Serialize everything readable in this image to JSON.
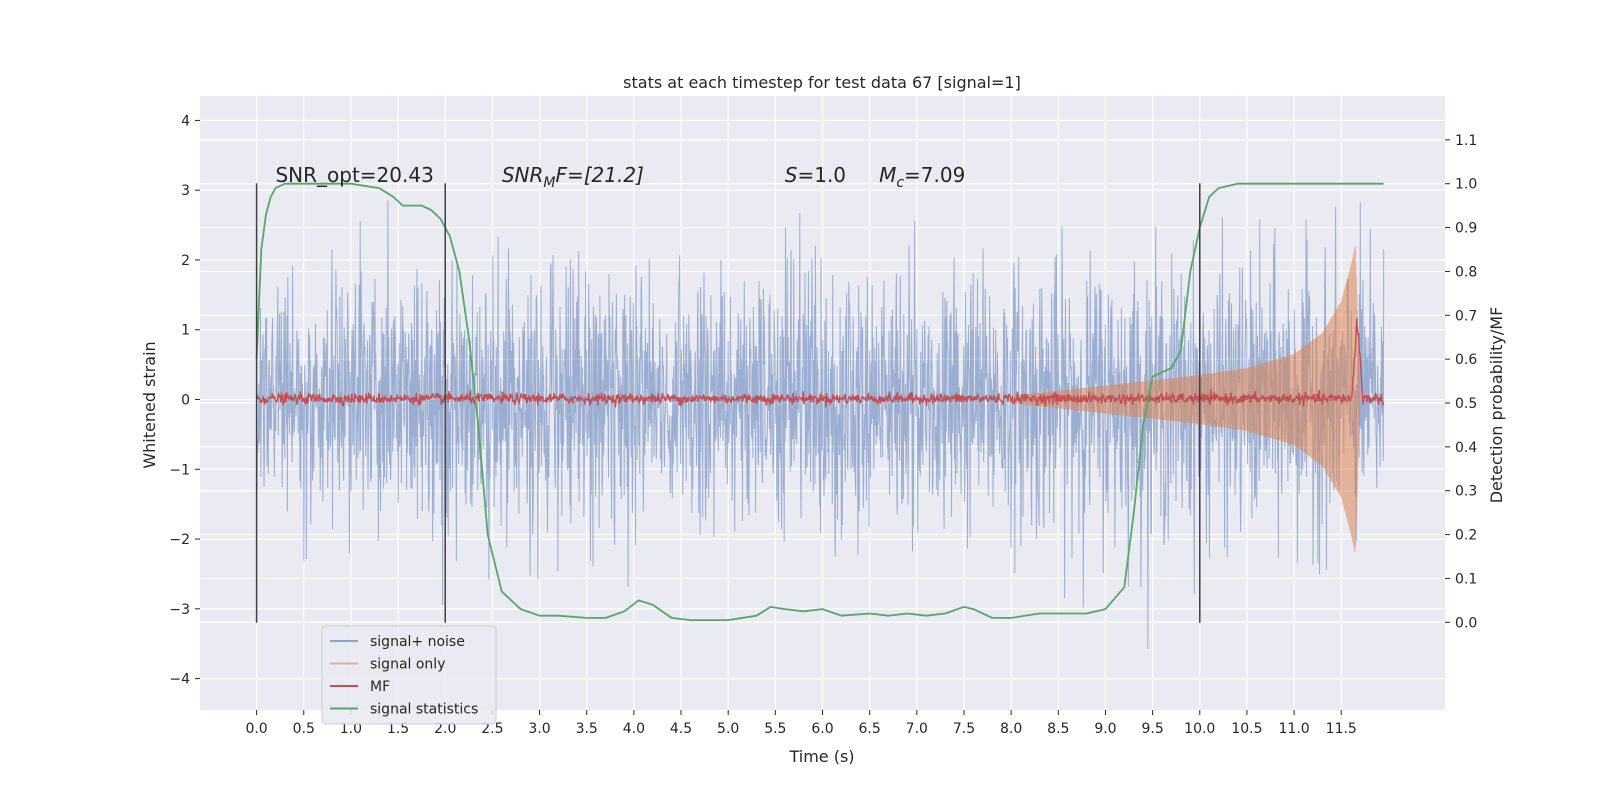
{
  "chart_data": {
    "type": "line",
    "title": "stats at each timestep for test data 67 [signal=1]",
    "xlabel": "Time (s)",
    "ylabel_left": "Whitened strain",
    "ylabel_right": "Detection probability/MF",
    "xlim": [
      -0.6,
      12.6
    ],
    "ylim_left": [
      -4.45,
      4.35
    ],
    "ylim_right": [
      -0.2,
      1.2
    ],
    "x_ticks": [
      "0.0",
      "0.5",
      "1.0",
      "1.5",
      "2.0",
      "2.5",
      "3.0",
      "3.5",
      "4.0",
      "4.5",
      "5.0",
      "5.5",
      "6.0",
      "6.5",
      "7.0",
      "7.5",
      "8.0",
      "8.5",
      "9.0",
      "9.5",
      "10.0",
      "10.5",
      "11.0",
      "11.5"
    ],
    "y_ticks_left": [
      "4",
      "3",
      "2",
      "1",
      "0",
      "−1",
      "−2",
      "−3",
      "−4"
    ],
    "y_ticks_right": [
      "1.1",
      "1.0",
      "0.9",
      "0.8",
      "0.7",
      "0.6",
      "0.5",
      "0.4",
      "0.3",
      "0.2",
      "0.1",
      "0.0"
    ],
    "vlines": [
      0.0,
      2.0,
      10.0
    ],
    "vline_range": [
      -3.2,
      3.1
    ],
    "annotations": [
      {
        "text": "SNR_opt=20.43",
        "x": 0.2
      },
      {
        "text": "SNR",
        "sub": "M",
        "rest": "F=[21.2]",
        "x": 2.6,
        "italic": true
      },
      {
        "text": "S",
        "rest": "=1.0",
        "x": 5.6,
        "italic": true
      },
      {
        "text": "M",
        "sub": "c",
        "rest": "=7.09",
        "x": 6.6,
        "italic": true
      }
    ],
    "annotation_y": 3.2,
    "series": [
      {
        "name": "signal+ noise",
        "color": "#4c72b0",
        "axis": "left",
        "kind": "noise",
        "x_start": 0.0,
        "x_end": 11.95,
        "sigma": 0.95
      },
      {
        "name": "signal only",
        "color": "#dd8452",
        "axis": "left",
        "kind": "chirp",
        "x_start": 8.0,
        "x_end": 11.7,
        "envelope": [
          [
            8.0,
            0.05
          ],
          [
            9.0,
            0.2
          ],
          [
            10.0,
            0.35
          ],
          [
            10.5,
            0.45
          ],
          [
            11.0,
            0.65
          ],
          [
            11.3,
            0.95
          ],
          [
            11.5,
            1.4
          ],
          [
            11.6,
            1.9
          ],
          [
            11.65,
            2.2
          ],
          [
            11.7,
            0.0
          ]
        ]
      },
      {
        "name": "MF",
        "color": "#c44e52",
        "axis": "right",
        "kind": "mf",
        "x_start": 0.0,
        "x_end": 11.95,
        "baseline": 0.51,
        "peak_x": 11.67,
        "peak_y": 0.72
      },
      {
        "name": "signal statistics",
        "color": "#55a868",
        "axis": "right",
        "kind": "line",
        "x": [
          0.0,
          0.05,
          0.1,
          0.15,
          0.2,
          0.3,
          0.5,
          1.0,
          1.3,
          1.45,
          1.55,
          1.65,
          1.75,
          1.85,
          1.95,
          2.05,
          2.15,
          2.25,
          2.35,
          2.45,
          2.6,
          2.8,
          3.0,
          3.2,
          3.5,
          3.7,
          3.9,
          4.05,
          4.2,
          4.4,
          4.6,
          5.0,
          5.3,
          5.45,
          5.6,
          5.8,
          6.0,
          6.2,
          6.5,
          6.7,
          6.9,
          7.1,
          7.3,
          7.5,
          7.6,
          7.8,
          8.0,
          8.3,
          8.5,
          8.8,
          9.0,
          9.2,
          9.3,
          9.4,
          9.5,
          9.6,
          9.7,
          9.8,
          9.9,
          10.0,
          10.1,
          10.2,
          10.4,
          11.0,
          11.5,
          11.95
        ],
        "y": [
          0.6,
          0.85,
          0.93,
          0.97,
          0.99,
          1.0,
          1.0,
          1.0,
          0.99,
          0.97,
          0.95,
          0.95,
          0.95,
          0.94,
          0.92,
          0.88,
          0.8,
          0.65,
          0.45,
          0.2,
          0.07,
          0.03,
          0.015,
          0.015,
          0.01,
          0.01,
          0.025,
          0.05,
          0.04,
          0.01,
          0.005,
          0.005,
          0.015,
          0.035,
          0.03,
          0.025,
          0.03,
          0.015,
          0.02,
          0.015,
          0.02,
          0.015,
          0.02,
          0.035,
          0.03,
          0.01,
          0.01,
          0.02,
          0.02,
          0.02,
          0.03,
          0.08,
          0.25,
          0.45,
          0.56,
          0.57,
          0.58,
          0.62,
          0.8,
          0.9,
          0.97,
          0.99,
          1.0,
          1.0,
          1.0,
          1.0
        ]
      }
    ],
    "legend": {
      "placement": "lower-left",
      "entries": [
        "signal+ noise",
        "signal only",
        "MF",
        "signal statistics"
      ]
    },
    "grid": true
  }
}
